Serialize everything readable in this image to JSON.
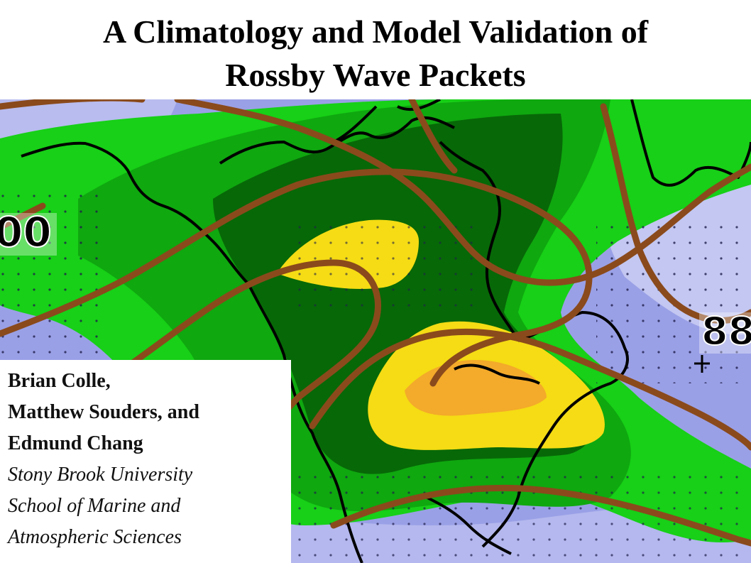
{
  "slide": {
    "title_line1": "A Climatology and Model Validation of",
    "title_line2": "Rossby Wave Packets"
  },
  "authors": {
    "line1": "Brian Colle,",
    "line2": "Matthew Souders, and",
    "line3": "Edmund Chang",
    "affiliation_line1": "Stony Brook University",
    "affiliation_line2": "School of Marine and",
    "affiliation_line3": "Atmospheric Sciences"
  },
  "map": {
    "contour_label_left": "00",
    "contour_label_right": "88",
    "colors": {
      "background_blue": "#9aa0e6",
      "pale_blue": "#c8ccf2",
      "light_green": "#17d017",
      "mid_green": "#0fa80f",
      "dark_green": "#076807",
      "yellow": "#f5dc14",
      "orange": "#f4aa2a",
      "contour_brown": "#8a4a1c",
      "coastline": "#000000"
    }
  }
}
